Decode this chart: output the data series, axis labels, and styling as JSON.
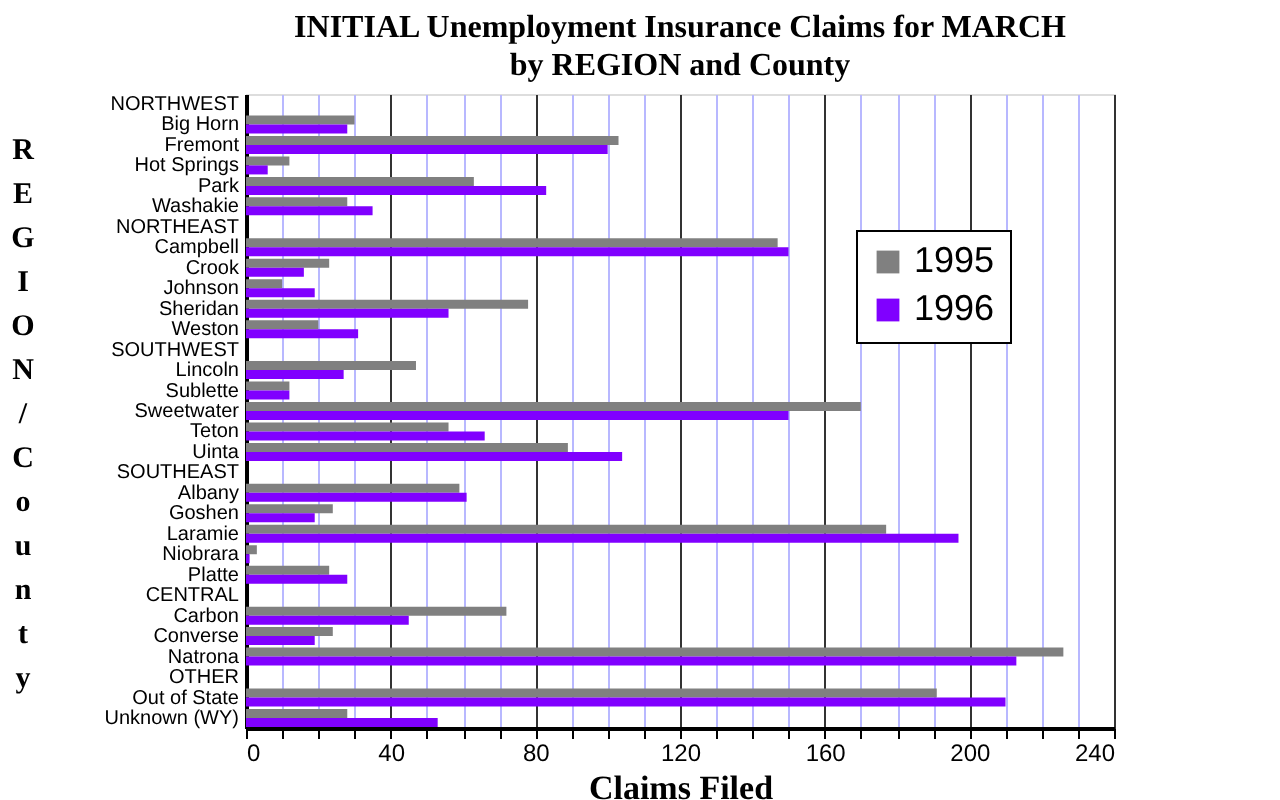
{
  "chart_data": {
    "type": "bar",
    "orientation": "horizontal",
    "title": "INITIAL Unemployment Insurance Claims for MARCH",
    "subtitle": "by REGION and County",
    "xlabel": "Claims Filed",
    "ylabel": "REGION/County",
    "categories": [
      "NORTHWEST",
      "Big Horn",
      "Fremont",
      "Hot Springs",
      "Park",
      "Washakie",
      "NORTHEAST",
      "Campbell",
      "Crook",
      "Johnson",
      "Sheridan",
      "Weston",
      "SOUTHWEST",
      "Lincoln",
      "Sublette",
      "Sweetwater",
      "Teton",
      "Uinta",
      "SOUTHEAST",
      "Albany",
      "Goshen",
      "Laramie",
      "Niobrara",
      "Platte",
      "CENTRAL",
      "Carbon",
      "Converse",
      "Natrona",
      "OTHER",
      "Out of State",
      "Unknown (WY)"
    ],
    "series": [
      {
        "name": "1995",
        "color": "#808080",
        "values": [
          null,
          30,
          103,
          12,
          63,
          28,
          null,
          147,
          23,
          10,
          78,
          20,
          null,
          47,
          12,
          170,
          56,
          89,
          null,
          59,
          24,
          177,
          3,
          23,
          null,
          72,
          24,
          226,
          null,
          191,
          28
        ]
      },
      {
        "name": "1996",
        "color": "#8000ff",
        "values": [
          null,
          28,
          100,
          6,
          83,
          35,
          null,
          150,
          16,
          19,
          56,
          31,
          null,
          27,
          12,
          150,
          66,
          104,
          null,
          61,
          19,
          197,
          1,
          28,
          null,
          45,
          19,
          213,
          null,
          210,
          53
        ]
      }
    ],
    "xlim": [
      0,
      240
    ],
    "xticks": [
      0,
      {
        "value": 10,
        "label": null
      },
      {
        "value": 20,
        "label": null
      },
      {
        "value": 30,
        "label": null
      },
      40,
      {
        "value": 50,
        "label": null
      },
      {
        "value": 60,
        "label": null
      },
      {
        "value": 70,
        "label": null
      },
      80,
      {
        "value": 90,
        "label": null
      },
      {
        "value": 100,
        "label": null
      },
      {
        "value": 110,
        "label": null
      },
      120,
      {
        "value": 130,
        "label": null
      },
      {
        "value": 140,
        "label": null
      },
      {
        "value": 150,
        "label": null
      },
      160,
      {
        "value": 170,
        "label": null
      },
      {
        "value": 180,
        "label": null
      },
      {
        "value": 190,
        "label": null
      },
      200,
      {
        "value": 210,
        "label": null
      },
      {
        "value": 220,
        "label": null
      },
      {
        "value": 230,
        "label": null
      },
      240
    ],
    "grid": "x",
    "legend": "right"
  }
}
